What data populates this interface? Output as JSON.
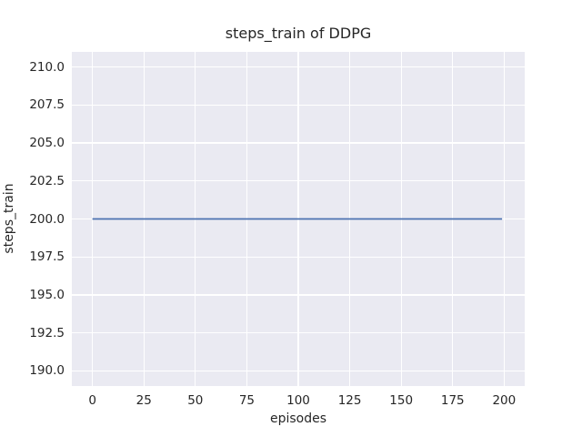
{
  "style": {
    "figure_background": "#ffffff",
    "plot_background": "#eaeaf2",
    "grid_color": "#ffffff",
    "text_color": "#262626",
    "line_color": "#4c72b0"
  },
  "chart_data": {
    "type": "line",
    "title": "steps_train of DDPG",
    "xlabel": "episodes",
    "ylabel": "steps_train",
    "xlim": [
      -10,
      210
    ],
    "ylim": [
      189,
      211
    ],
    "grid": true,
    "legend": false,
    "x_ticks": [
      {
        "value": 0,
        "label": "0"
      },
      {
        "value": 25,
        "label": "25"
      },
      {
        "value": 50,
        "label": "50"
      },
      {
        "value": 75,
        "label": "75"
      },
      {
        "value": 100,
        "label": "100"
      },
      {
        "value": 125,
        "label": "125"
      },
      {
        "value": 150,
        "label": "150"
      },
      {
        "value": 175,
        "label": "175"
      },
      {
        "value": 200,
        "label": "200"
      }
    ],
    "y_ticks": [
      {
        "value": 190.0,
        "label": "190.0"
      },
      {
        "value": 192.5,
        "label": "192.5"
      },
      {
        "value": 195.0,
        "label": "195.0"
      },
      {
        "value": 197.5,
        "label": "197.5"
      },
      {
        "value": 200.0,
        "label": "200.0"
      },
      {
        "value": 202.5,
        "label": "202.5"
      },
      {
        "value": 205.0,
        "label": "205.0"
      },
      {
        "value": 207.5,
        "label": "207.5"
      },
      {
        "value": 210.0,
        "label": "210.0"
      }
    ],
    "series": [
      {
        "name": "steps_train",
        "color": "#4c72b0",
        "line_width": 1.8,
        "x": [
          0,
          199
        ],
        "y": [
          200,
          200
        ]
      }
    ]
  }
}
